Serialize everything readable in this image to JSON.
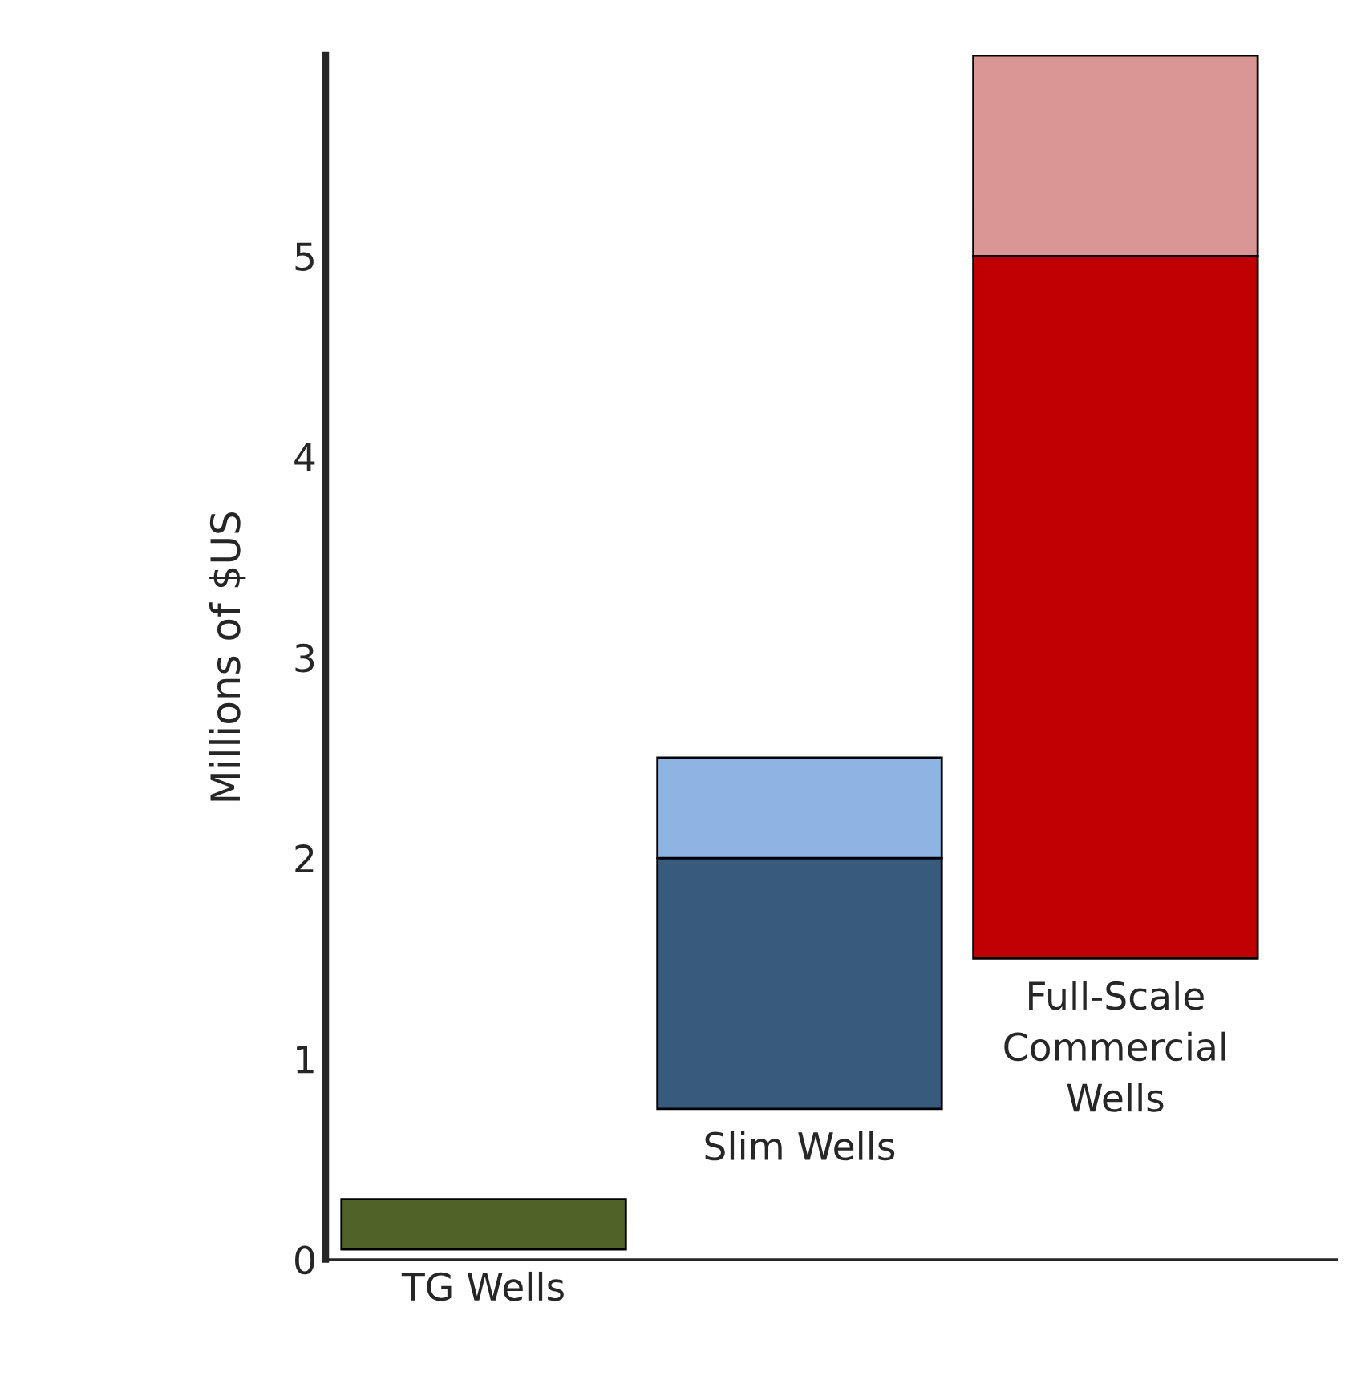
{
  "chart_data": {
    "type": "bar",
    "ylabel": "Millions of $US",
    "categories": [
      "TG Wells",
      "Slim Wells",
      "Full-Scale\nCommercial\nWells"
    ],
    "series": [
      {
        "colors": [
          "#4f6228",
          "#385a7c",
          "#c00000"
        ],
        "base": [
          0.05,
          0.75,
          1.5
        ],
        "values": [
          0.25,
          1.25,
          3.5
        ]
      },
      {
        "colors": [
          "#8eb4e3",
          "#8eb4e3",
          "#d99694"
        ],
        "base": [
          null,
          2.0,
          5.0
        ],
        "values": [
          null,
          0.5,
          1.0
        ]
      }
    ],
    "ylim": [
      0,
      6
    ],
    "yticks": [
      0,
      1,
      2,
      3,
      4,
      5
    ],
    "grid": false,
    "legend": false
  }
}
